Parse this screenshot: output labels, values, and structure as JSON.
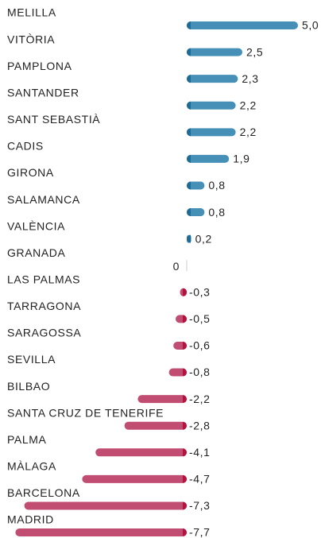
{
  "chart_data": {
    "type": "bar",
    "orientation": "horizontal",
    "categories": [
      "MELILLA",
      "VITÒRIA",
      "PAMPLONA",
      "SANTANDER",
      "SANT SEBASTIÀ",
      "CADIS",
      "GIRONA",
      "SALAMANCA",
      "VALÈNCIA",
      "GRANADA",
      "LAS PALMAS",
      "TARRAGONA",
      "SARAGOSSA",
      "SEVILLA",
      "BILBAO",
      "SANTA CRUZ DE TENERIFE",
      "PALMA",
      "MÀLAGA",
      "BARCELONA",
      "MADRID"
    ],
    "values": [
      5.0,
      2.5,
      2.3,
      2.2,
      2.2,
      1.9,
      0.8,
      0.8,
      0.2,
      0,
      -0.3,
      -0.5,
      -0.6,
      -0.8,
      -2.2,
      -2.8,
      -4.1,
      -4.7,
      -7.3,
      -7.7
    ],
    "value_labels": [
      "5,0",
      "2,5",
      "2,3",
      "2,2",
      "2,2",
      "1,9",
      "0,8",
      "0,8",
      "0,2",
      "0",
      "-0,3",
      "-0,5",
      "-0,6",
      "-0,8",
      "-2,2",
      "-2,8",
      "-4,1",
      "-4,7",
      "-7,3",
      "-7,7"
    ],
    "positive_color": "#4690b8",
    "positive_cap_color": "#1d6b97",
    "negative_color": "#c24d73",
    "negative_cap_color": "#b5123e"
  }
}
